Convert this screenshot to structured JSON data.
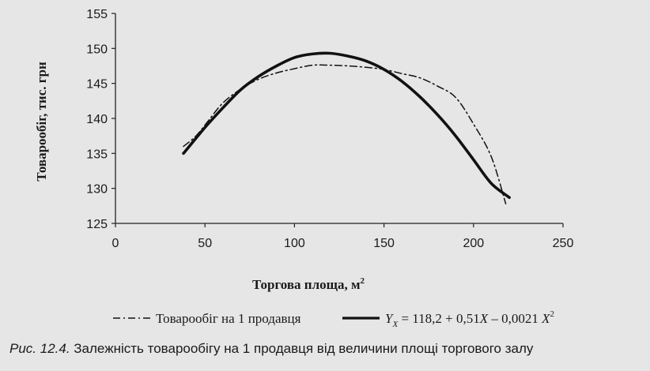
{
  "chart_data": {
    "type": "line",
    "xlabel": "Торгова площа, м²",
    "ylabel": "Товарообіг, тис. грн",
    "xlim": [
      0,
      250
    ],
    "ylim": [
      125,
      155
    ],
    "x_ticks": [
      "0",
      "50",
      "100",
      "150",
      "200",
      "250"
    ],
    "y_ticks": [
      "125",
      "130",
      "135",
      "140",
      "145",
      "150",
      "155"
    ],
    "grid": false,
    "legend_position": "bottom",
    "series": [
      {
        "name": "Товарообіг на 1 продавця",
        "style": "dash-dot",
        "x": [
          38,
          45,
          52,
          60,
          70,
          80,
          90,
          100,
          110,
          120,
          130,
          140,
          150,
          160,
          170,
          180,
          190,
          200,
          210,
          218
        ],
        "y": [
          136.0,
          137.5,
          139.7,
          142.2,
          144.2,
          145.6,
          146.5,
          147.1,
          147.6,
          147.6,
          147.5,
          147.3,
          147.0,
          146.4,
          145.8,
          144.6,
          143.0,
          139.2,
          134.5,
          127.8
        ]
      },
      {
        "name": "Y_X = 118,2 + 0,51X – 0,0021 X^2",
        "style": "solid-bold",
        "x": [
          38,
          50,
          60,
          70,
          80,
          90,
          100,
          110,
          120,
          130,
          140,
          150,
          160,
          170,
          180,
          190,
          200,
          210,
          220
        ],
        "y": [
          135.0,
          138.7,
          141.5,
          144.1,
          146.0,
          147.5,
          148.7,
          149.2,
          149.3,
          148.9,
          148.2,
          147.0,
          145.3,
          143.1,
          140.5,
          137.5,
          134.1,
          130.7,
          128.7
        ]
      }
    ]
  },
  "legend": {
    "series1_label": "Товарообіг на 1 продавця",
    "series2_label": "Y_X = 118,2 + 0,51X – 0,0021 X^2"
  },
  "caption": {
    "label": "Рис. 12.4.",
    "text": " Залежність товарообігу на 1 продавця від величини площі торгового залу"
  },
  "colors": {
    "line": "#111111",
    "background": "#e6e6e6"
  }
}
